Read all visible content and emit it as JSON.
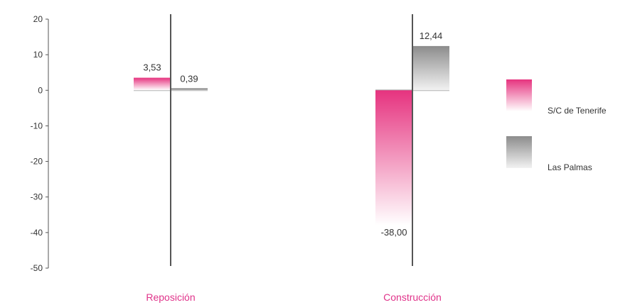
{
  "chart_data": {
    "type": "bar",
    "categories": [
      "Reposición",
      "Construcción"
    ],
    "series": [
      {
        "name": "S/C de Tenerife",
        "values": [
          3.53,
          -38.0
        ],
        "labels": [
          "3,53",
          "-38,00"
        ]
      },
      {
        "name": "Las Palmas",
        "values": [
          0.39,
          12.44
        ],
        "labels": [
          "0,39",
          "12,44"
        ]
      }
    ],
    "ylim": [
      -50,
      20
    ],
    "yticks": [
      20,
      10,
      0,
      -10,
      -20,
      -30,
      -40,
      -50
    ],
    "ytick_labels": [
      "20",
      "10",
      "0",
      "-10",
      "-20",
      "-30",
      "-40",
      "-50"
    ],
    "legend_position": "right",
    "colors": {
      "series_0": "#e6337f",
      "series_1": "#8c8c8c",
      "category_label": "#e0338a",
      "axis": "#555555"
    }
  }
}
